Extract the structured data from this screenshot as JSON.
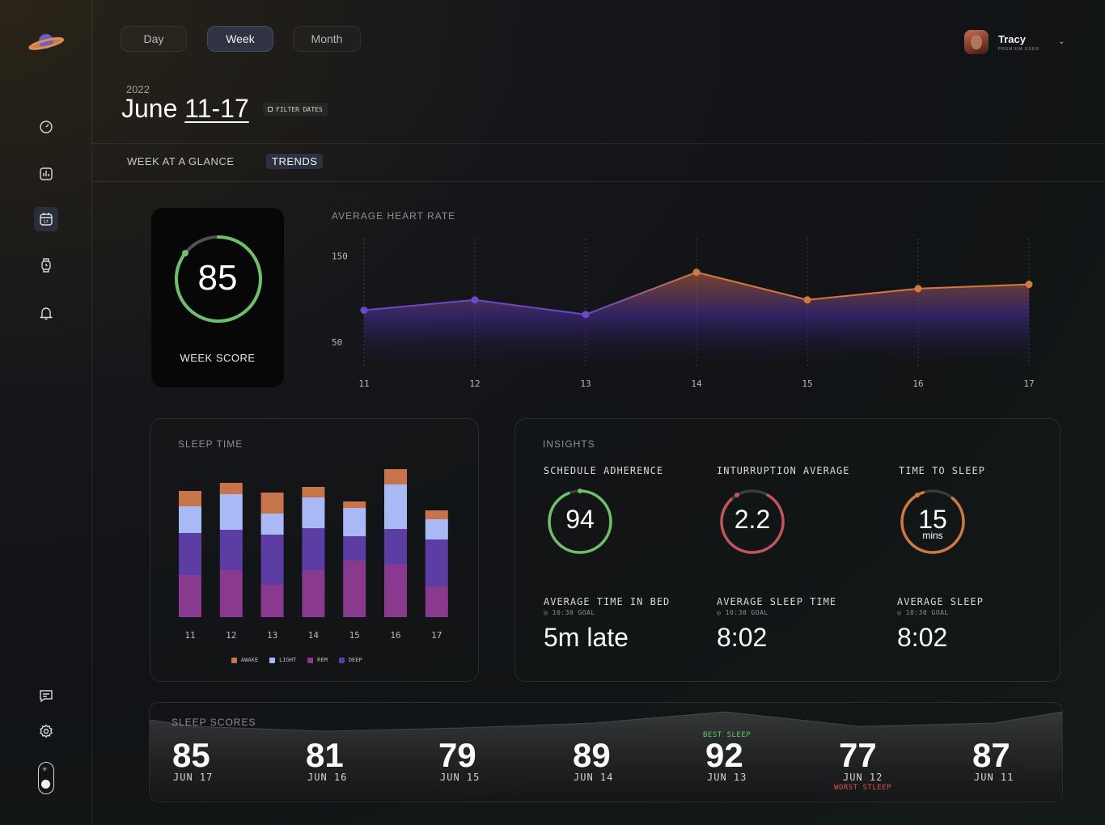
{
  "sidebar": {
    "icons": [
      "planet-logo",
      "dashboard-icon",
      "chart-icon",
      "calendar-icon",
      "watch-icon",
      "bell-icon",
      "chat-icon",
      "gear-icon",
      "day-night-toggle"
    ]
  },
  "header": {
    "tabs": [
      {
        "label": "Day"
      },
      {
        "label": "Week"
      },
      {
        "label": "Month"
      }
    ],
    "user": {
      "name": "Tracy",
      "role": "PREMIUM USER"
    },
    "year": "2022",
    "month": "June",
    "range": "11-17",
    "filter_label": "FILTER DATES",
    "subtabs": [
      {
        "label": "WEEK AT A GLANCE"
      },
      {
        "label": "TRENDS"
      }
    ]
  },
  "week_score": {
    "value": "85",
    "label": "WEEK SCORE",
    "progress": 0.85
  },
  "heart_rate": {
    "title": "AVERAGE HEART RATE"
  },
  "sleep_time": {
    "title": "SLEEP TIME",
    "legend": [
      "AWAKE",
      "LIGHT",
      "REM",
      "DEEP"
    ]
  },
  "insights": {
    "title": "INSIGHTS",
    "schedule": {
      "label": "SCHEDULE ADHERENCE",
      "value": "94"
    },
    "interruption": {
      "label": "INTURRUPTION AVERAGE",
      "value": "2.2"
    },
    "time_to_sleep": {
      "label": "TIME TO SLEEP",
      "value": "15",
      "unit": "mins"
    },
    "bed": {
      "label": "AVERAGE TIME IN BED",
      "goal": "10:30 GOAL",
      "value": "5m late"
    },
    "sleep_time": {
      "label": "AVERAGE SLEEP TIME",
      "goal": "10:30 GOAL",
      "value": "8:02"
    },
    "avg_sleep": {
      "label": "AVERAGE SLEEP",
      "goal": "10:30 GOAL",
      "value": "8:02"
    }
  },
  "sleep_scores": {
    "title": "SLEEP SCORES",
    "items": [
      {
        "score": "85",
        "date": "JUN 17"
      },
      {
        "score": "81",
        "date": "JUN 16"
      },
      {
        "score": "79",
        "date": "JUN 15"
      },
      {
        "score": "89",
        "date": "JUN 14"
      },
      {
        "score": "92",
        "date": "JUN 13"
      },
      {
        "score": "77",
        "date": "JUN 12"
      },
      {
        "score": "87",
        "date": "JUN 11"
      }
    ],
    "best_label": "BEST SLEEP",
    "worst_label": "WORST STLEEP"
  },
  "colors": {
    "awake": "#c8744a",
    "light": "#a9b9f5",
    "rem": "#8a3a8e",
    "deep": "#5b3da3",
    "score_green": "#6fbf6a",
    "orange": "#d1783f",
    "rose": "#c2545c"
  },
  "chart_data": [
    {
      "type": "line",
      "title": "AVERAGE HEART RATE",
      "x": [
        "11",
        "12",
        "13",
        "14",
        "15",
        "16",
        "17"
      ],
      "series": [
        {
          "values": [
            87,
            99,
            82,
            131,
            99,
            112,
            117
          ]
        }
      ],
      "yticks": [
        "150",
        "50"
      ],
      "ylim": [
        20,
        170
      ]
    },
    {
      "type": "bar",
      "title": "SLEEP TIME",
      "categories": [
        "11",
        "12",
        "13",
        "14",
        "15",
        "16",
        "17"
      ],
      "series": [
        {
          "name": "REM",
          "values": [
            52,
            58,
            40,
            58,
            70,
            65,
            38
          ]
        },
        {
          "name": "DEEP",
          "values": [
            52,
            50,
            62,
            52,
            30,
            44,
            58
          ]
        },
        {
          "name": "LIGHT",
          "values": [
            33,
            44,
            26,
            38,
            35,
            55,
            25
          ]
        },
        {
          "name": "AWAKE",
          "values": [
            19,
            14,
            26,
            13,
            8,
            19,
            11
          ]
        }
      ]
    }
  ]
}
